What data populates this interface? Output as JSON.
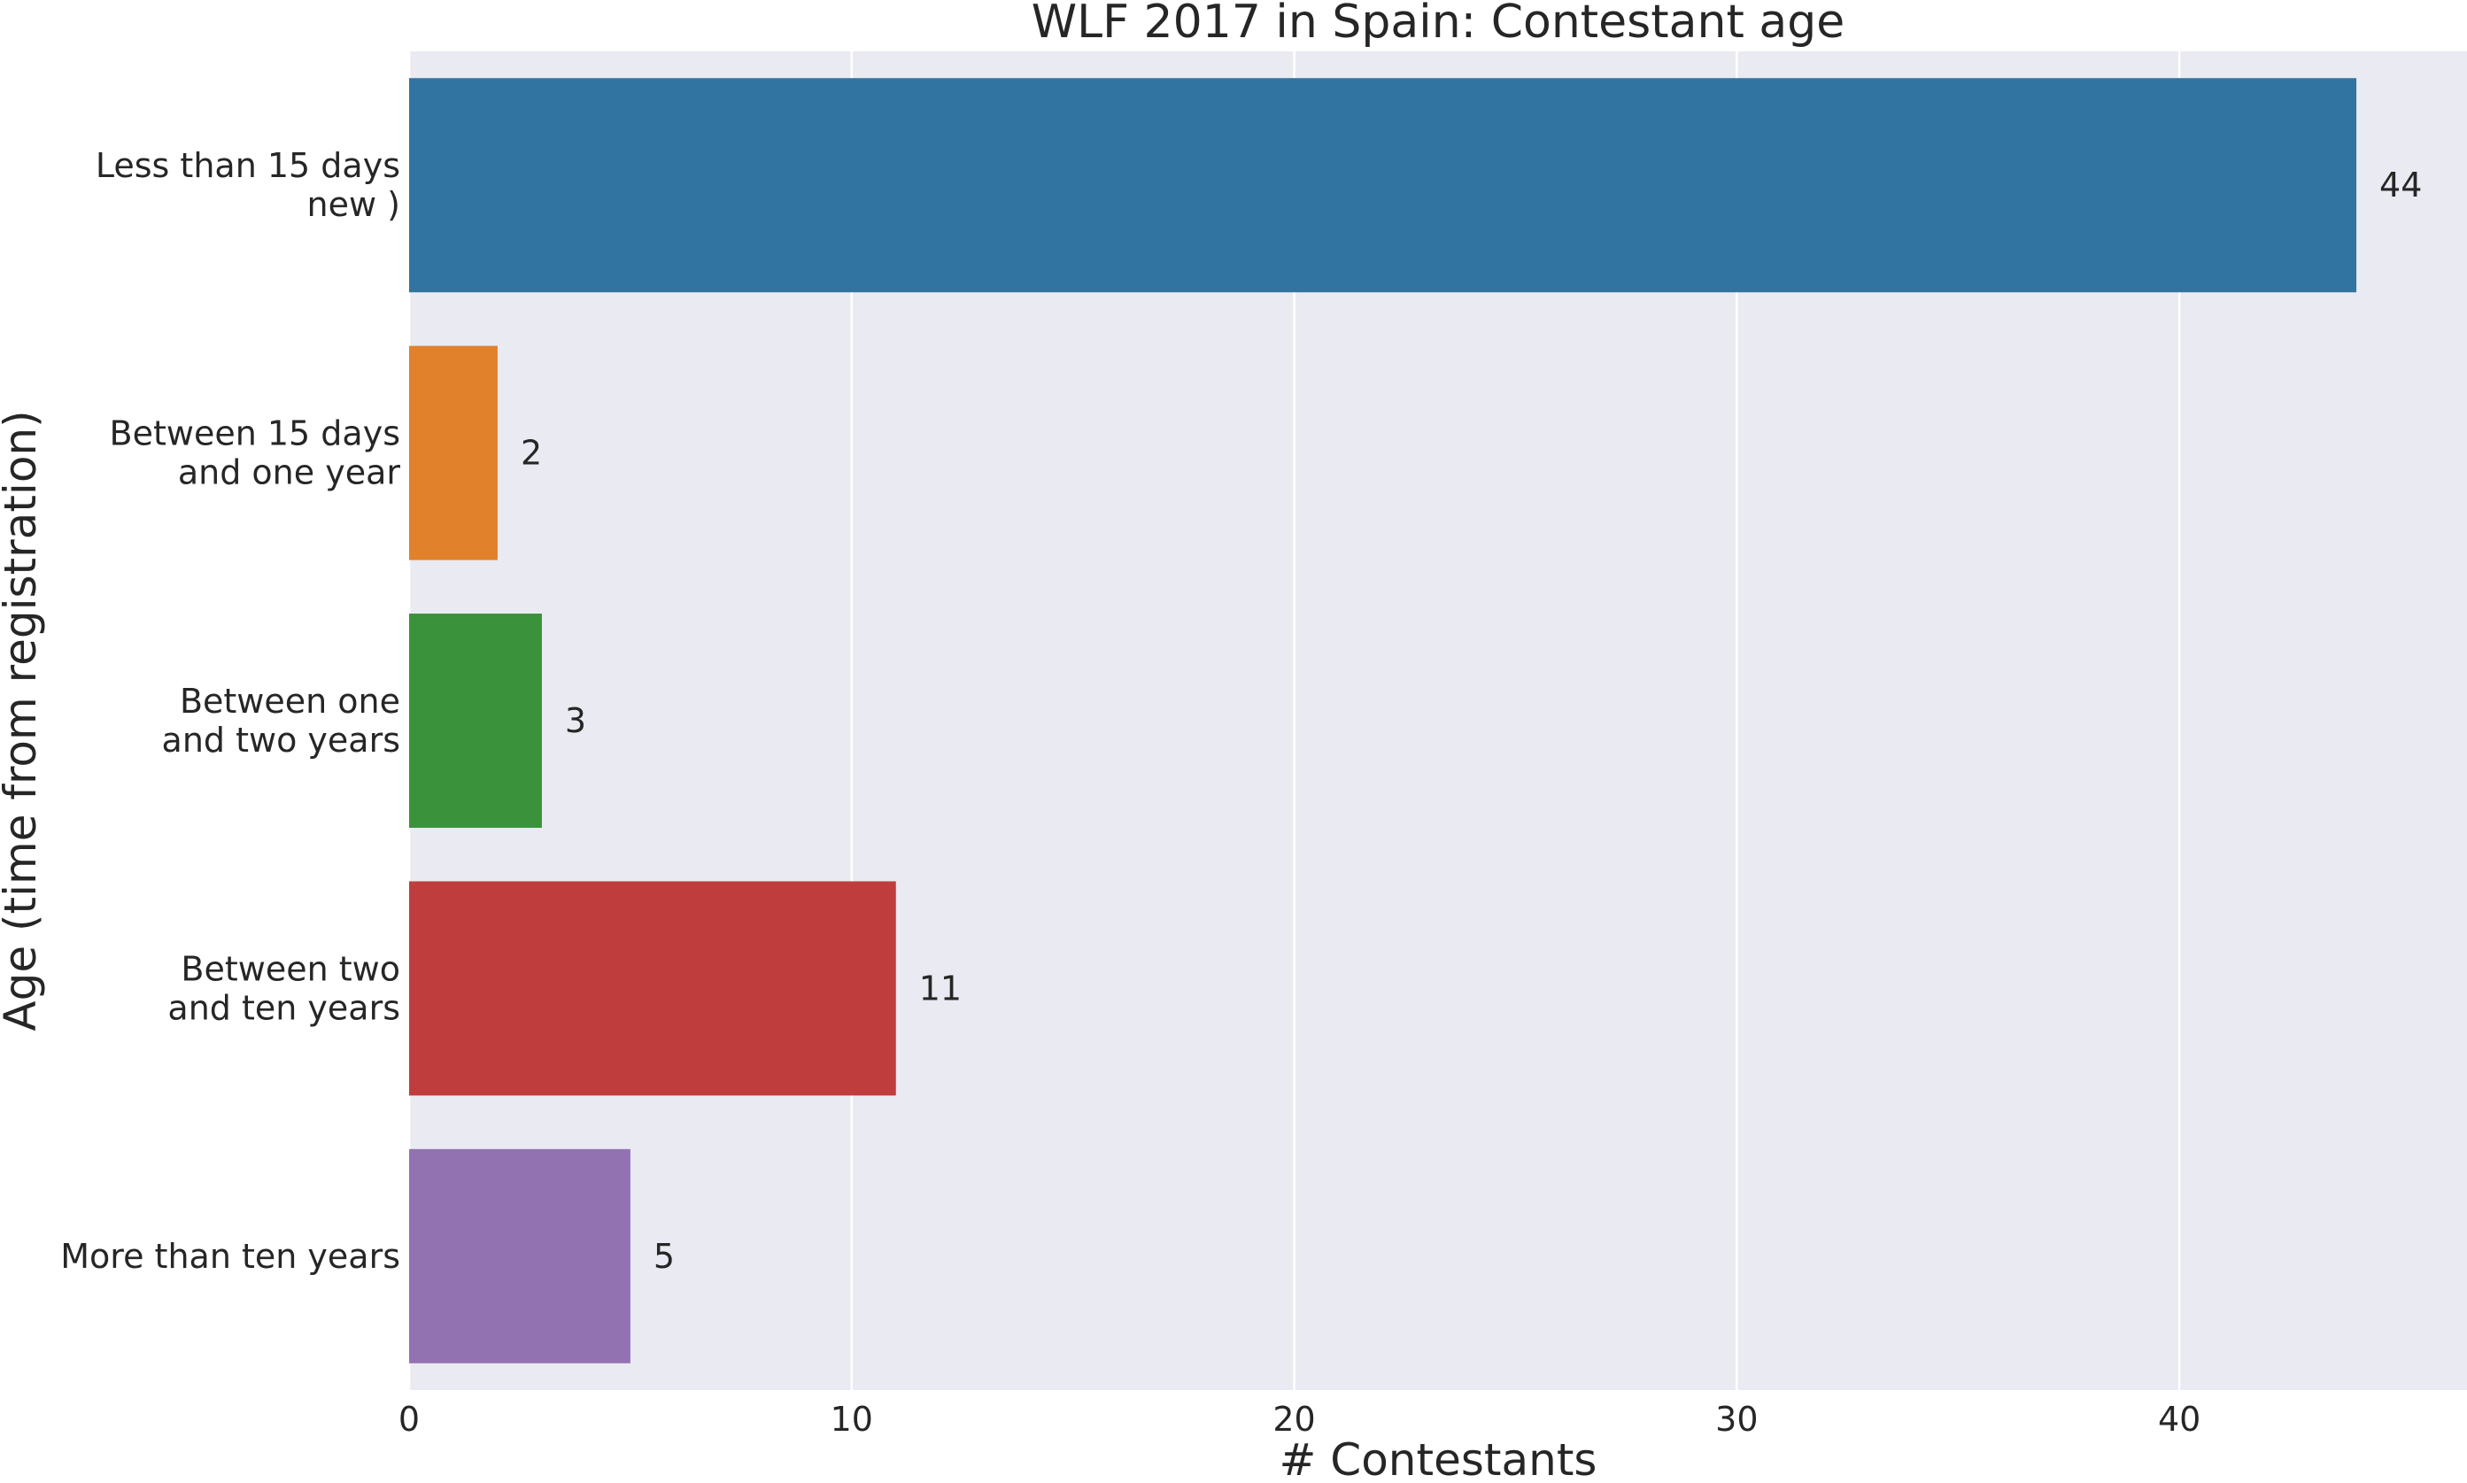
{
  "chart_data": {
    "type": "bar",
    "orientation": "horizontal",
    "title": "WLF 2017 in Spain: Contestant age",
    "xlabel": "# Contestants",
    "ylabel": "Age (time from registration)",
    "xlim": [
      0,
      46.5
    ],
    "xticks": [
      0,
      10,
      20,
      30,
      40
    ],
    "grid": true,
    "categories": [
      [
        "Less than 15 days",
        "new )"
      ],
      [
        "Between 15 days",
        "and one year"
      ],
      [
        "Between one",
        "and two years"
      ],
      [
        "Between two",
        "and ten years"
      ],
      [
        "More than ten years"
      ]
    ],
    "values": [
      44,
      2,
      3,
      11,
      5
    ],
    "data_labels": [
      "44",
      "2",
      "3",
      "11",
      "5"
    ],
    "colors": [
      "#3274a1",
      "#e1812c",
      "#3a923a",
      "#c03d3e",
      "#9372b2"
    ],
    "background": "#eaeaf2",
    "gridline_color": "#ffffff"
  }
}
